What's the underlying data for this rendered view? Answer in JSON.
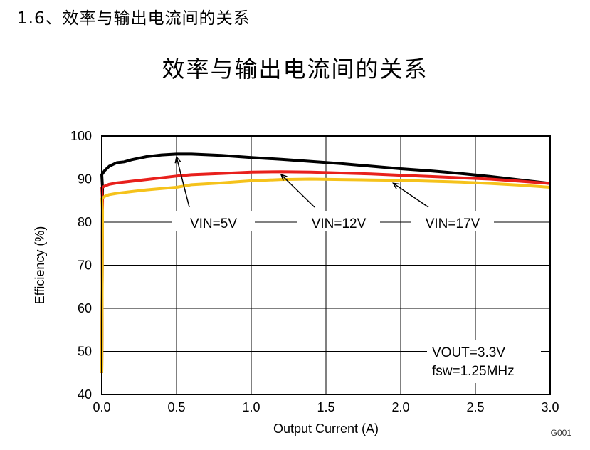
{
  "heading": "1.6、效率与输出电流间的关系",
  "chart_data": {
    "type": "line",
    "title": "效率与输出电流间的关系",
    "xlabel": "Output Current (A)",
    "ylabel": "Efficiency (%)",
    "xlim": [
      0,
      3
    ],
    "ylim": [
      40,
      100
    ],
    "x_ticks": [
      "0.0",
      "0.5",
      "1.0",
      "1.5",
      "2.0",
      "2.5",
      "3.0"
    ],
    "y_ticks": [
      "40",
      "50",
      "60",
      "70",
      "80",
      "90",
      "100"
    ],
    "grid": true,
    "series": [
      {
        "name": "VIN=5V",
        "color": "#000000",
        "x": [
          0,
          0.02,
          0.05,
          0.1,
          0.15,
          0.2,
          0.3,
          0.4,
          0.5,
          0.6,
          0.8,
          1.0,
          1.2,
          1.4,
          1.6,
          1.8,
          2.0,
          2.2,
          2.4,
          2.6,
          2.8,
          3.0
        ],
        "values": [
          91.0,
          92.0,
          93.0,
          93.8,
          94.0,
          94.5,
          95.2,
          95.6,
          95.8,
          95.8,
          95.5,
          95.0,
          94.6,
          94.1,
          93.6,
          93.0,
          92.4,
          91.9,
          91.3,
          90.6,
          89.8,
          89.0
        ]
      },
      {
        "name": "VIN=12V",
        "color": "#e8201c",
        "x": [
          0,
          0.02,
          0.05,
          0.1,
          0.2,
          0.3,
          0.4,
          0.5,
          0.6,
          0.8,
          1.0,
          1.2,
          1.4,
          1.6,
          1.8,
          2.0,
          2.2,
          2.4,
          2.6,
          2.8,
          3.0
        ],
        "values": [
          88.0,
          88.4,
          88.8,
          89.1,
          89.5,
          89.9,
          90.3,
          90.7,
          91.0,
          91.3,
          91.6,
          91.7,
          91.6,
          91.4,
          91.2,
          90.9,
          90.6,
          90.3,
          90.0,
          89.5,
          89.0
        ]
      },
      {
        "name": "VIN=17V",
        "color": "#f5c21b",
        "x": [
          0,
          0.02,
          0.05,
          0.1,
          0.2,
          0.3,
          0.4,
          0.5,
          0.6,
          0.8,
          1.0,
          1.2,
          1.4,
          1.6,
          1.8,
          2.0,
          2.2,
          2.4,
          2.6,
          2.8,
          3.0
        ],
        "values": [
          85.5,
          86.0,
          86.4,
          86.7,
          87.1,
          87.5,
          87.8,
          88.1,
          88.7,
          89.1,
          89.6,
          89.9,
          90.0,
          89.9,
          89.8,
          89.7,
          89.5,
          89.3,
          89.0,
          88.6,
          88.1
        ]
      }
    ],
    "annotations": [
      {
        "text": "VIN=5V",
        "points_to": [
          0.5,
          95.8
        ]
      },
      {
        "text": "VIN=12V",
        "points_to": [
          1.2,
          91.7
        ]
      },
      {
        "text": "VIN=17V",
        "points_to": [
          1.95,
          89.7
        ]
      }
    ],
    "conditions": [
      "VOUT=3.3V",
      "fsw=1.25MHz"
    ],
    "figure_code": "G001"
  }
}
